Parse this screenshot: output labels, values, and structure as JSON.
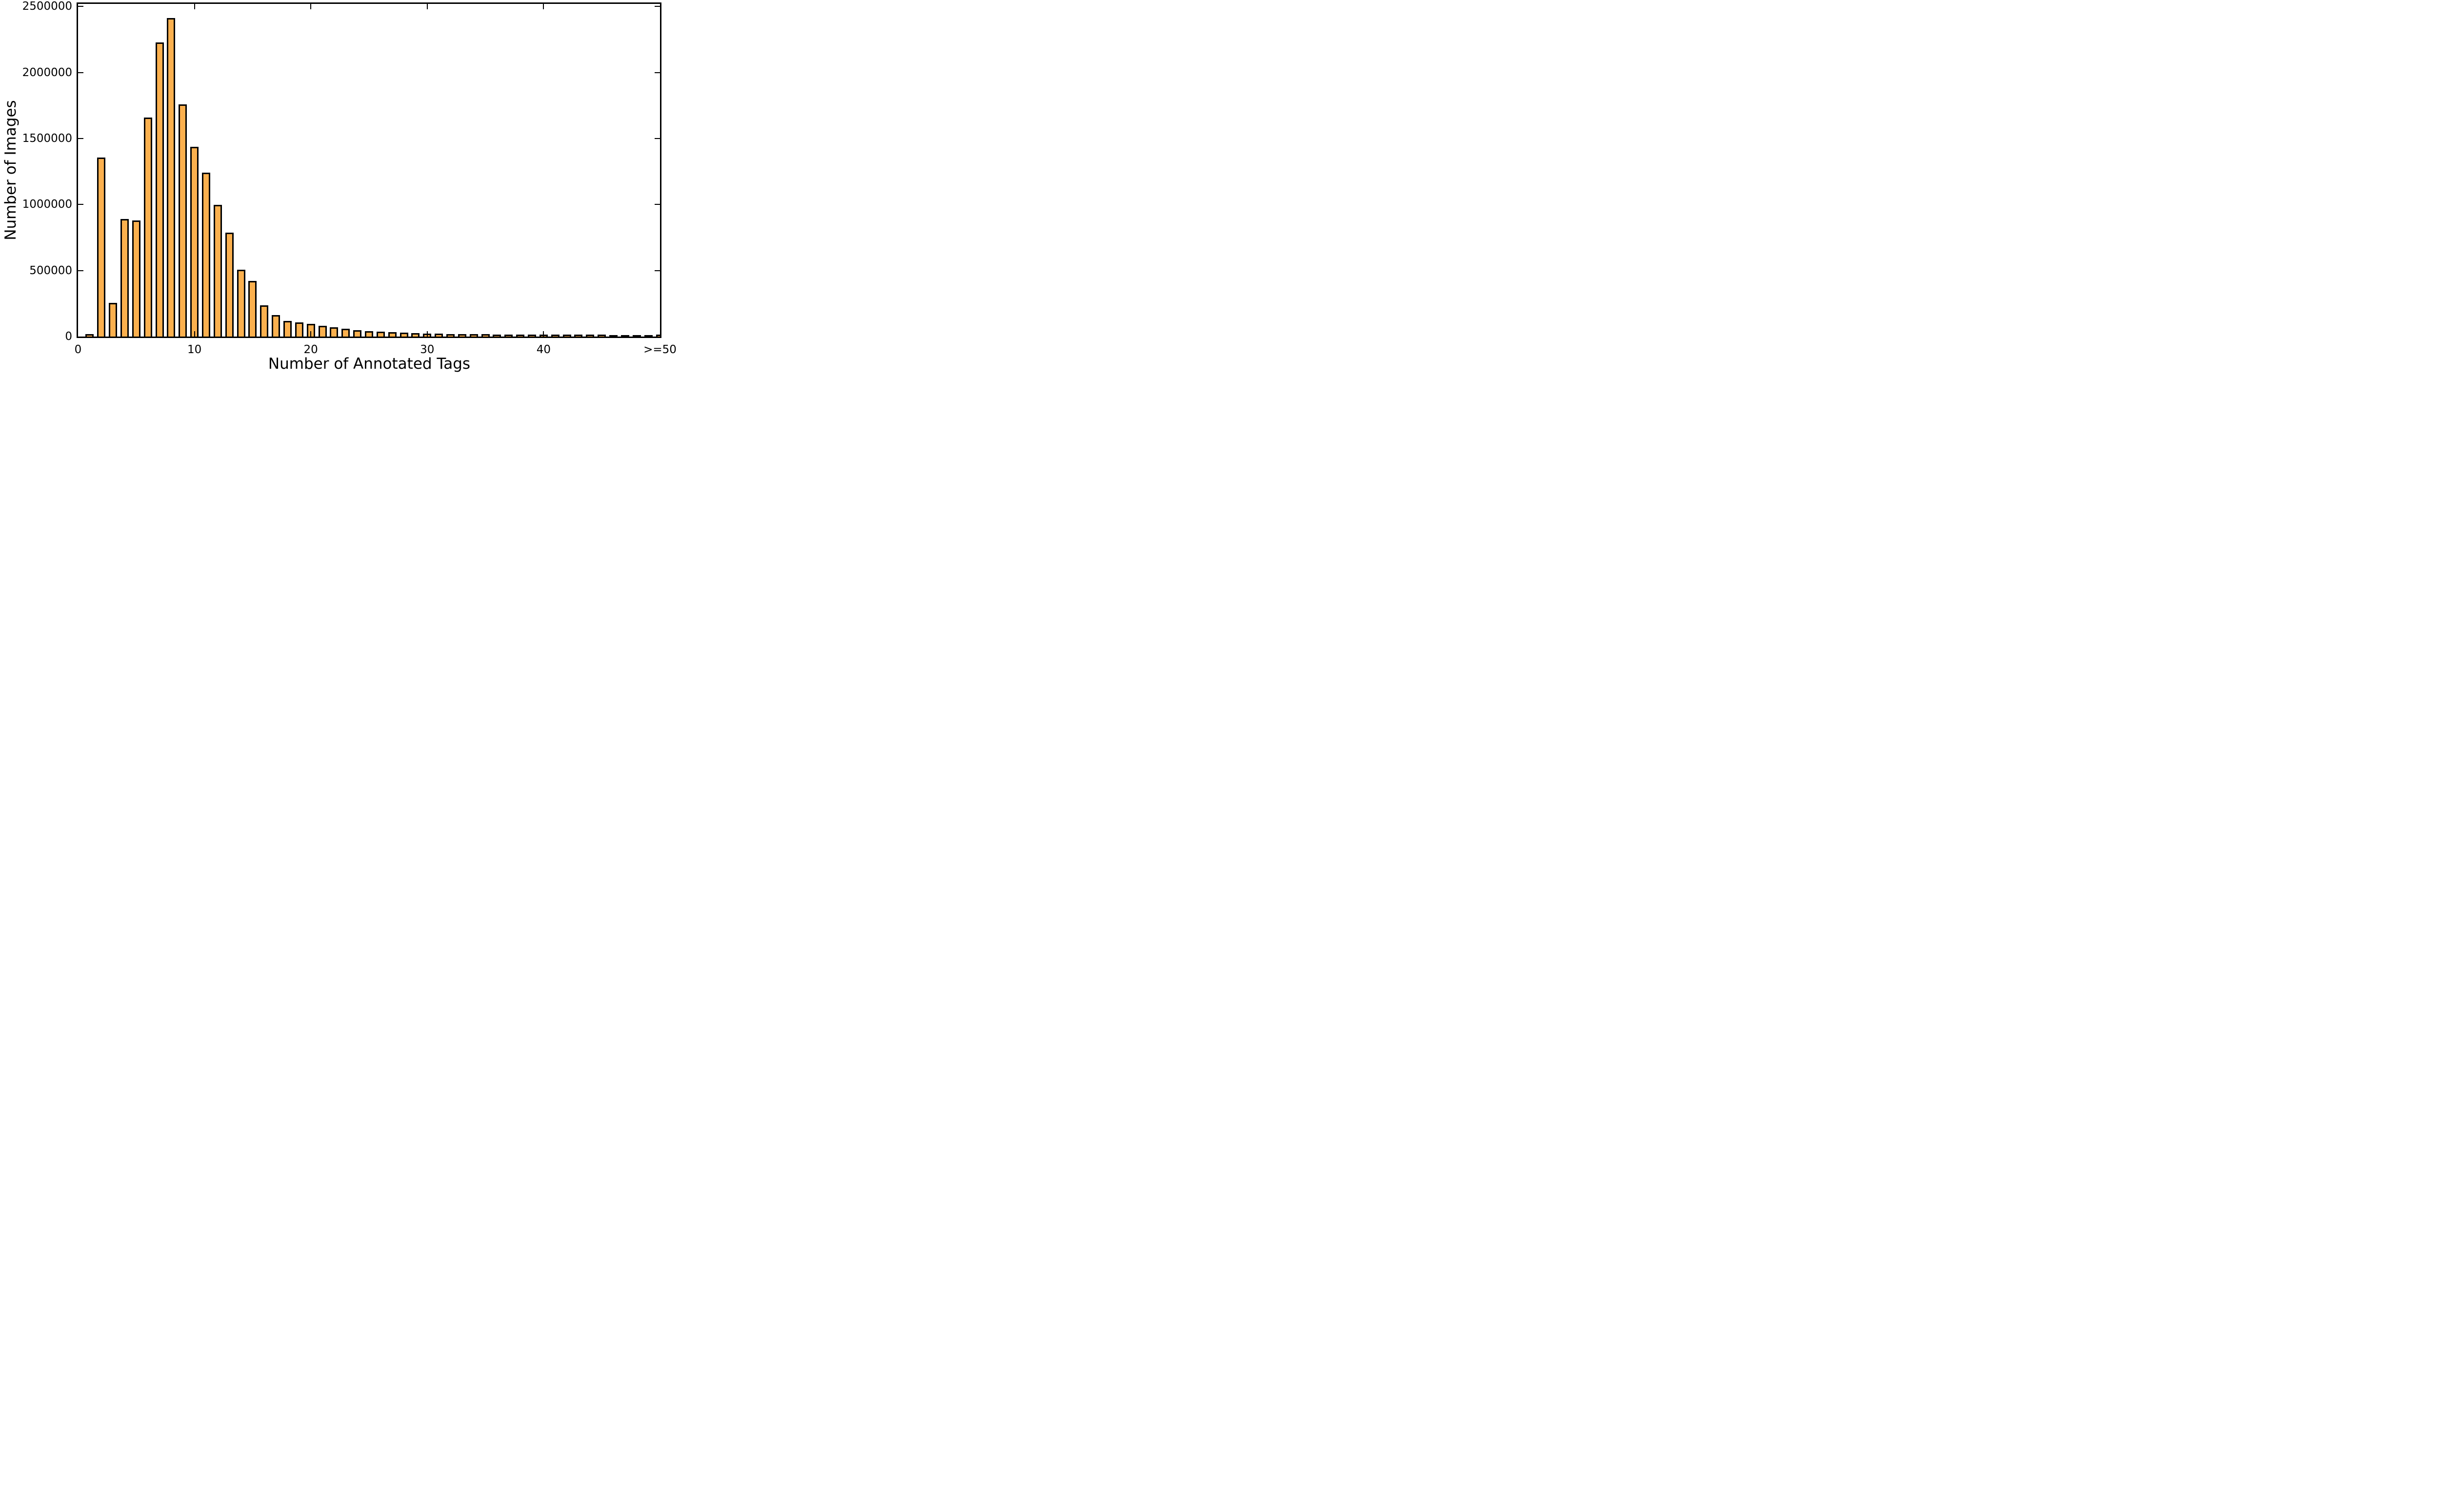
{
  "figure": {
    "background_color": "#ffffff",
    "spine_color": "#000000"
  },
  "chart_data": {
    "type": "bar",
    "title": "",
    "xlabel": "Number of Annotated Tags",
    "ylabel": "Number of Images",
    "xlim": [
      0,
      50
    ],
    "ylim": [
      0,
      2520000
    ],
    "grid": false,
    "legend": null,
    "bar_color": "#FBB04E",
    "bar_edge_color": "#000000",
    "bar_width_units": 0.71,
    "x": [
      1,
      2,
      3,
      4,
      5,
      6,
      7,
      8,
      9,
      10,
      11,
      12,
      13,
      14,
      15,
      16,
      17,
      18,
      19,
      20,
      21,
      22,
      23,
      24,
      25,
      26,
      27,
      28,
      29,
      30,
      31,
      32,
      33,
      34,
      35,
      36,
      37,
      38,
      39,
      40,
      41,
      42,
      43,
      44,
      45,
      46,
      47,
      48,
      49,
      50
    ],
    "values": [
      9000,
      1345000,
      245000,
      880000,
      868000,
      1648000,
      2217000,
      2400000,
      1747000,
      1428000,
      1232000,
      988000,
      776000,
      495000,
      412000,
      225000,
      152000,
      108000,
      97000,
      85000,
      69000,
      58000,
      47000,
      38000,
      31000,
      25000,
      21000,
      17000,
      14000,
      11500,
      9800,
      8600,
      7600,
      6800,
      6100,
      5400,
      4800,
      4300,
      3900,
      3500,
      3100,
      2800,
      2500,
      2300,
      2100,
      1900,
      1700,
      1600,
      1500,
      3000
    ],
    "xticks": [
      {
        "pos": 0,
        "label": "0"
      },
      {
        "pos": 10,
        "label": "10"
      },
      {
        "pos": 20,
        "label": "20"
      },
      {
        "pos": 30,
        "label": "30"
      },
      {
        "pos": 40,
        "label": "40"
      },
      {
        "pos": 50,
        "label": ">=50"
      }
    ],
    "yticks": [
      {
        "pos": 0,
        "label": "0"
      },
      {
        "pos": 500000,
        "label": "500000"
      },
      {
        "pos": 1000000,
        "label": "1000000"
      },
      {
        "pos": 1500000,
        "label": "1500000"
      },
      {
        "pos": 2000000,
        "label": "2000000"
      },
      {
        "pos": 2500000,
        "label": "2500000"
      }
    ]
  }
}
